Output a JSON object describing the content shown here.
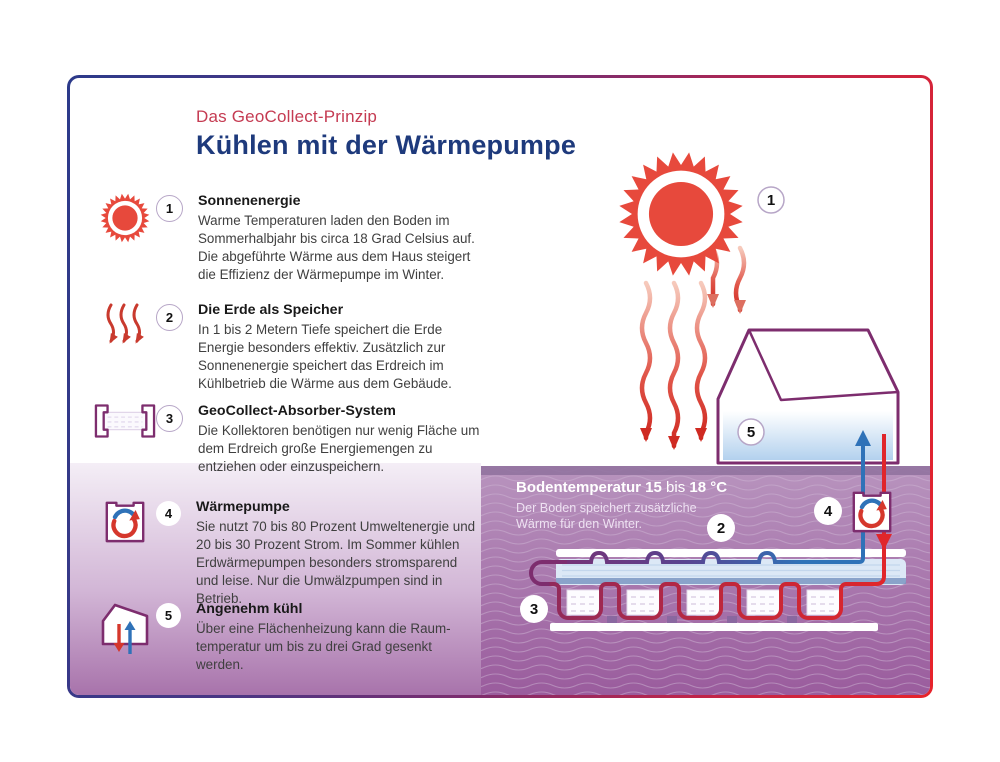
{
  "header": {
    "kicker": "Das GeoCollect-Prinzip",
    "title": "Kühlen mit der Wärmepumpe"
  },
  "steps": [
    {
      "num": "1",
      "icon": "sun-icon",
      "title": "Sonnenenergie",
      "body": "Warme Temperaturen laden den Boden im Sommerhalbjahr bis circa 18 Grad Celsius auf. Die abgeführte Wärme aus dem Haus steigert die Effizienz der Wärmepumpe im Winter."
    },
    {
      "num": "2",
      "icon": "heat-arrows-icon",
      "title": "Die Erde als Speicher",
      "body": "In 1 bis 2 Metern Tiefe speichert die Erde Energie besonders effektiv. Zusätzlich zur Sonnenenergie speichert das Erdreich im Kühlbetrieb die Wärme aus dem Gebäude."
    },
    {
      "num": "3",
      "icon": "absorber-icon",
      "title": "GeoCollect-Absorber-System",
      "body": "Die Kollektoren benötigen nur wenig Fläche um dem Erdreich große Energiemengen zu entziehen oder einzuspeichern."
    },
    {
      "num": "4",
      "icon": "heatpump-icon",
      "title": "Wärmepumpe",
      "body": "Sie nutzt 70 bis 80 Prozent Umweltenergie und 20 bis 30 Prozent Strom. Im Sommer kühlen Erdwärmepumpen besonders stromsparend und leise. Nur die Umwälzpumpen sind in Betrieb."
    },
    {
      "num": "5",
      "icon": "house-icon",
      "title": "Angenehm kühl",
      "body": "Über eine Flächenheizung kann die Raum-temperatur um bis zu drei Grad gesenkt werden."
    }
  ],
  "scene": {
    "ground_label": {
      "b1": "Bodentemperatur 15",
      "mid": "bis",
      "b2": "18 °C",
      "sub": "Der Boden speichert zusätzliche Wärme für den Winter."
    }
  },
  "colors": {
    "accent_red": "#c53b52",
    "headline_blue": "#1e3a7c",
    "outline_purple": "#7d2d6e",
    "sun_red": "#e7493c",
    "pipe_blue": "#2f72b8",
    "pipe_red": "#e0262b",
    "ground_purple": "#9a5c9d",
    "border_gradient_start": "#2c3a8a",
    "border_gradient_end": "#e7232b"
  }
}
